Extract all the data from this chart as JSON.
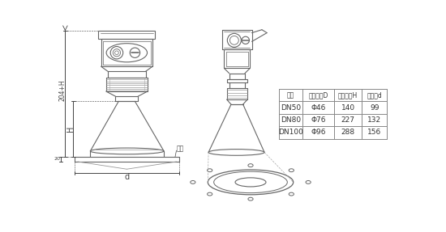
{
  "bg_color": "#ffffff",
  "line_color": "#666666",
  "table_header_row": [
    "法兰",
    "锟口直径D",
    "锟口高度H",
    "四层盘d"
  ],
  "table_rows": [
    [
      "DN50",
      "Φ46",
      "140",
      "99"
    ],
    [
      "DN80",
      "Φ76",
      "227",
      "132"
    ],
    [
      "DN100",
      "Φ96",
      "288",
      "156"
    ]
  ],
  "dim_label_204H": "204+H",
  "dim_label_H": "H",
  "dim_label_20": "20",
  "dim_label_d": "d",
  "dim_label_flangia": "法兰",
  "table_text_color": "#333333",
  "dim_color": "#444444"
}
